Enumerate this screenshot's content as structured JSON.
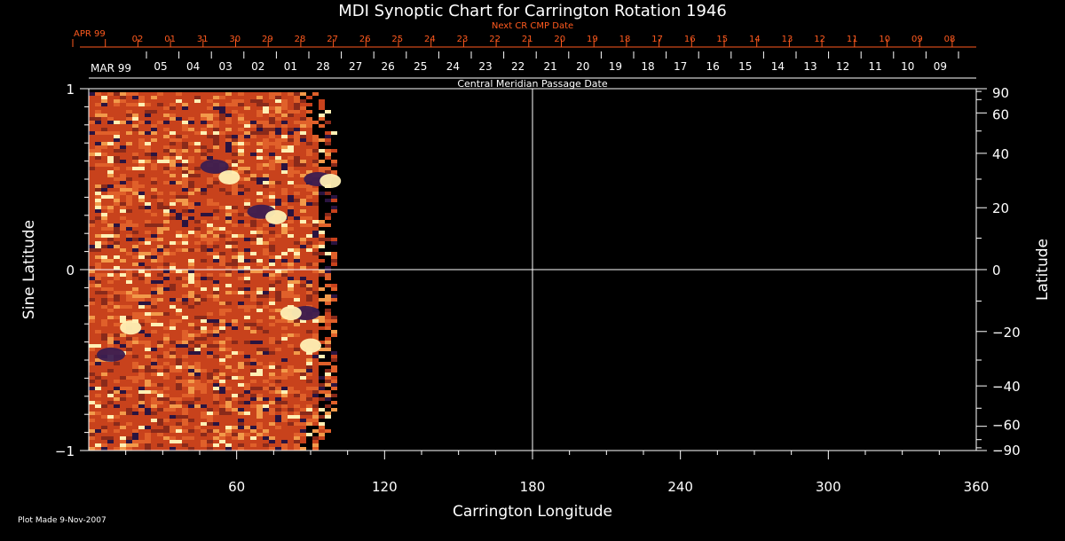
{
  "chart_data": {
    "type": "heatmap",
    "title": "MDI Synoptic Chart for Carrington Rotation 1946",
    "next_cr_label": "Next CR CMP Date",
    "next_cr_month": "APR 99",
    "next_cr_days": [
      "02",
      "01",
      "31",
      "30",
      "29",
      "28",
      "27",
      "26",
      "25",
      "24",
      "23",
      "22",
      "21",
      "20",
      "19",
      "18",
      "17",
      "16",
      "15",
      "14",
      "13",
      "12",
      "11",
      "10",
      "09",
      "08"
    ],
    "cmp_month": "MAR 99",
    "cmp_days": [
      "05",
      "04",
      "03",
      "02",
      "01",
      "28",
      "27",
      "26",
      "25",
      "24",
      "23",
      "22",
      "21",
      "20",
      "19",
      "18",
      "17",
      "16",
      "15",
      "14",
      "13",
      "12",
      "11",
      "10",
      "09"
    ],
    "cmp_label": "Central Meridian Passage Date",
    "xlabel": "Carrington Longitude",
    "ylabel_left": "Sine Latitude",
    "ylabel_right": "Latitude",
    "xlim": [
      0,
      360
    ],
    "ylim": [
      -1,
      1
    ],
    "x_ticks": [
      "60",
      "120",
      "180",
      "240",
      "300",
      "360"
    ],
    "y_ticks_left": [
      "1",
      "0",
      "−1"
    ],
    "y_ticks_right": [
      "90",
      "60",
      "40",
      "20",
      "0",
      "−20",
      "−40",
      "−60",
      "−90"
    ],
    "data_coverage_longitude": [
      0,
      100
    ],
    "grid": "center crosshair at 180° longitude and 0 sine latitude",
    "colors": {
      "background": "#000000",
      "axes": "#ffffff",
      "red_labels": "#ff5a1e",
      "field_positive": "#fff0b4",
      "field_neutral": "#d2461e",
      "field_negative": "#3c1e50"
    },
    "active_regions": [
      {
        "polarity": "negative",
        "lon": 51,
        "sinlat": 0.57
      },
      {
        "polarity": "positive",
        "lon": 57,
        "sinlat": 0.51
      },
      {
        "polarity": "negative",
        "lon": 70,
        "sinlat": 0.32
      },
      {
        "polarity": "positive",
        "lon": 76,
        "sinlat": 0.29
      },
      {
        "polarity": "negative",
        "lon": 93,
        "sinlat": 0.5
      },
      {
        "polarity": "positive",
        "lon": 98,
        "sinlat": 0.49
      },
      {
        "polarity": "negative",
        "lon": 88,
        "sinlat": -0.24
      },
      {
        "polarity": "positive",
        "lon": 82,
        "sinlat": -0.24
      },
      {
        "polarity": "negative",
        "lon": 9,
        "sinlat": -0.47
      },
      {
        "polarity": "positive",
        "lon": 17,
        "sinlat": -0.32
      },
      {
        "polarity": "positive",
        "lon": 90,
        "sinlat": -0.42
      }
    ]
  },
  "footer": {
    "plot_made": "Plot Made  9-Nov-2007"
  }
}
